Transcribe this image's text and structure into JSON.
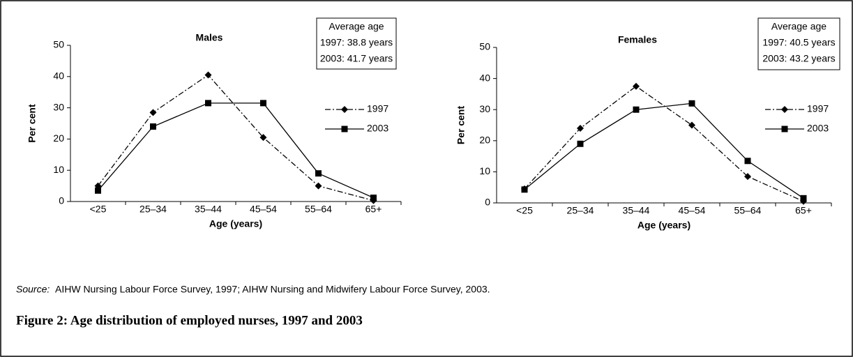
{
  "chart_data": [
    {
      "type": "line",
      "title": "Males",
      "xlabel": "Age (years)",
      "ylabel": "Per cent",
      "categories": [
        "<25",
        "25–34",
        "35–44",
        "45–54",
        "55–64",
        "65+"
      ],
      "ylim": [
        0,
        50
      ],
      "yticks": [
        0,
        10,
        20,
        30,
        40,
        50
      ],
      "annotation": [
        "Average age",
        "1997: 38.8 years",
        "2003: 41.7 years"
      ],
      "series": [
        {
          "name": "1997",
          "color": "#000000",
          "line_style": "dash-dot",
          "marker": "diamond",
          "values": [
            5,
            28.5,
            40.5,
            20.5,
            5,
            0.3
          ]
        },
        {
          "name": "2003",
          "color": "#000000",
          "line_style": "solid",
          "marker": "square",
          "values": [
            3.5,
            24,
            31.5,
            31.5,
            9,
            1.2
          ]
        }
      ]
    },
    {
      "type": "line",
      "title": "Females",
      "xlabel": "Age (years)",
      "ylabel": "Per cent",
      "categories": [
        "<25",
        "25–34",
        "35–44",
        "45–54",
        "55–64",
        "65+"
      ],
      "ylim": [
        0,
        50
      ],
      "yticks": [
        0,
        10,
        20,
        30,
        40,
        50
      ],
      "annotation": [
        "Average age",
        "1997: 40.5 years",
        "2003: 43.2 years"
      ],
      "series": [
        {
          "name": "1997",
          "color": "#000000",
          "line_style": "dash-dot",
          "marker": "diamond",
          "values": [
            4.5,
            24,
            37.5,
            25,
            8.5,
            0.5
          ]
        },
        {
          "name": "2003",
          "color": "#000000",
          "line_style": "solid",
          "marker": "square",
          "values": [
            4.3,
            19,
            30,
            32,
            13.5,
            1.5
          ]
        }
      ]
    }
  ],
  "source_label": "Source:",
  "source": "AIHW Nursing Labour Force Survey, 1997; AIHW Nursing and Midwifery Labour Force Survey, 2003.",
  "caption": "Figure 2: Age distribution of employed nurses, 1997 and 2003"
}
